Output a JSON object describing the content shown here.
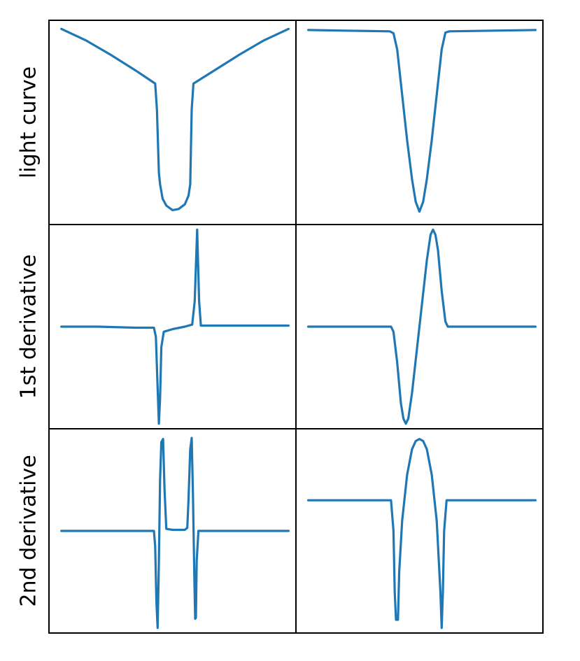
{
  "colors": {
    "line": "#1f77b4",
    "frame": "#000000",
    "background": "#ffffff"
  },
  "row_labels": [
    "light curve",
    "1st derivative",
    "2nd derivative"
  ],
  "chart_data": [
    {
      "type": "line",
      "row": 0,
      "col": 0,
      "title": "",
      "xlabel": "",
      "ylabel": "light curve",
      "grid": false,
      "ticks": false,
      "xlim": [
        0,
        100
      ],
      "ylim": [
        0.66,
        1.015
      ],
      "series": [
        {
          "values": [
            [
              5,
              1.0
            ],
            [
              15,
              0.98
            ],
            [
              25,
              0.955
            ],
            [
              35,
              0.928
            ],
            [
              43,
              0.905
            ],
            [
              43.7,
              0.86
            ],
            [
              44.5,
              0.75
            ],
            [
              45,
              0.73
            ],
            [
              46,
              0.705
            ],
            [
              47.5,
              0.693
            ],
            [
              50,
              0.685
            ],
            [
              52.5,
              0.687
            ],
            [
              55,
              0.695
            ],
            [
              56.5,
              0.71
            ],
            [
              57.2,
              0.73
            ],
            [
              57.8,
              0.86
            ],
            [
              58.5,
              0.905
            ],
            [
              67,
              0.928
            ],
            [
              77,
              0.955
            ],
            [
              87,
              0.98
            ],
            [
              97,
              1.0
            ]
          ]
        }
      ]
    },
    {
      "type": "line",
      "row": 0,
      "col": 1,
      "title": "",
      "xlabel": "",
      "ylabel": "",
      "grid": false,
      "ticks": false,
      "xlim": [
        0,
        100
      ],
      "ylim": [
        0.7,
        1.015
      ],
      "series": [
        {
          "values": [
            [
              5,
              1.0
            ],
            [
              20,
              0.999
            ],
            [
              38,
              0.998
            ],
            [
              39.5,
              0.995
            ],
            [
              41,
              0.97
            ],
            [
              43,
              0.9
            ],
            [
              45,
              0.83
            ],
            [
              47,
              0.77
            ],
            [
              48.5,
              0.735
            ],
            [
              50,
              0.72
            ],
            [
              51.5,
              0.735
            ],
            [
              53,
              0.77
            ],
            [
              55,
              0.83
            ],
            [
              57,
              0.9
            ],
            [
              59,
              0.97
            ],
            [
              60.5,
              0.996
            ],
            [
              62,
              0.998
            ],
            [
              80,
              0.999
            ],
            [
              97,
              1.0
            ]
          ]
        }
      ]
    },
    {
      "type": "line",
      "row": 1,
      "col": 0,
      "title": "",
      "xlabel": "",
      "ylabel": "1st derivative",
      "grid": false,
      "ticks": false,
      "xlim": [
        0,
        100
      ],
      "ylim": [
        -1.0,
        1.0
      ],
      "series": [
        {
          "values": [
            [
              5,
              0.0
            ],
            [
              20,
              0.0
            ],
            [
              35,
              -0.01
            ],
            [
              42.5,
              -0.01
            ],
            [
              43.3,
              -0.1
            ],
            [
              44,
              -0.6
            ],
            [
              44.5,
              -0.95
            ],
            [
              45,
              -0.7
            ],
            [
              45.5,
              -0.2
            ],
            [
              46.5,
              -0.05
            ],
            [
              50,
              -0.025
            ],
            [
              55,
              -0.0
            ],
            [
              58,
              0.02
            ],
            [
              59,
              0.25
            ],
            [
              60,
              0.95
            ],
            [
              60.8,
              0.25
            ],
            [
              61.5,
              0.01
            ],
            [
              70,
              0.01
            ],
            [
              97,
              0.01
            ]
          ]
        }
      ]
    },
    {
      "type": "line",
      "row": 1,
      "col": 1,
      "title": "",
      "xlabel": "",
      "ylabel": "",
      "grid": false,
      "ticks": false,
      "xlim": [
        0,
        100
      ],
      "ylim": [
        -1.0,
        1.0
      ],
      "series": [
        {
          "values": [
            [
              5,
              0.0
            ],
            [
              20,
              0.0
            ],
            [
              38.5,
              0.0
            ],
            [
              39.5,
              -0.05
            ],
            [
              41,
              -0.35
            ],
            [
              42.5,
              -0.75
            ],
            [
              43.5,
              -0.9
            ],
            [
              44.5,
              -0.95
            ],
            [
              45.5,
              -0.9
            ],
            [
              47,
              -0.65
            ],
            [
              50,
              0.0
            ],
            [
              53,
              0.65
            ],
            [
              54.5,
              0.9
            ],
            [
              55.5,
              0.95
            ],
            [
              56.5,
              0.9
            ],
            [
              57.5,
              0.75
            ],
            [
              59,
              0.35
            ],
            [
              60.5,
              0.05
            ],
            [
              61.5,
              0.0
            ],
            [
              80,
              0.0
            ],
            [
              97,
              0.0
            ]
          ]
        }
      ]
    },
    {
      "type": "line",
      "row": 2,
      "col": 0,
      "title": "",
      "xlabel": "",
      "ylabel": "2nd derivative",
      "grid": false,
      "ticks": false,
      "xlim": [
        0,
        100
      ],
      "ylim": [
        -1.0,
        1.0
      ],
      "series": [
        {
          "values": [
            [
              5,
              0.0
            ],
            [
              20,
              0.0
            ],
            [
              35,
              0.0
            ],
            [
              42.5,
              0.0
            ],
            [
              43,
              -0.15
            ],
            [
              43.5,
              -0.7
            ],
            [
              44,
              -0.95
            ],
            [
              44.5,
              -0.3
            ],
            [
              45,
              0.5
            ],
            [
              45.5,
              0.87
            ],
            [
              46.2,
              0.9
            ],
            [
              46.8,
              0.4
            ],
            [
              47.5,
              0.02
            ],
            [
              50,
              0.01
            ],
            [
              55,
              0.01
            ],
            [
              56,
              0.03
            ],
            [
              56.5,
              0.3
            ],
            [
              57.2,
              0.8
            ],
            [
              57.8,
              0.91
            ],
            [
              58.3,
              0.35
            ],
            [
              58.9,
              -0.5
            ],
            [
              59.2,
              -0.86
            ],
            [
              59.5,
              -0.85
            ],
            [
              59.8,
              -0.3
            ],
            [
              60.5,
              0.0
            ],
            [
              70,
              0.0
            ],
            [
              97,
              0.0
            ]
          ]
        }
      ]
    },
    {
      "type": "line",
      "row": 2,
      "col": 1,
      "title": "",
      "xlabel": "",
      "ylabel": "",
      "grid": false,
      "ticks": false,
      "xlim": [
        0,
        100
      ],
      "ylim": [
        -1.0,
        1.0
      ],
      "series": [
        {
          "values": [
            [
              5,
              0.3
            ],
            [
              20,
              0.3
            ],
            [
              38.5,
              0.3
            ],
            [
              39.5,
              0.0
            ],
            [
              40,
              -0.6
            ],
            [
              40.5,
              -0.87
            ],
            [
              41.3,
              -0.87
            ],
            [
              41.8,
              -0.4
            ],
            [
              43,
              0.1
            ],
            [
              45,
              0.55
            ],
            [
              47,
              0.8
            ],
            [
              48.5,
              0.88
            ],
            [
              50,
              0.9
            ],
            [
              51.5,
              0.88
            ],
            [
              53,
              0.8
            ],
            [
              55,
              0.55
            ],
            [
              57,
              0.1
            ],
            [
              58.5,
              -0.6
            ],
            [
              59,
              -0.95
            ],
            [
              59.5,
              -0.6
            ],
            [
              60,
              0.0
            ],
            [
              61,
              0.3
            ],
            [
              80,
              0.3
            ],
            [
              97,
              0.3
            ]
          ]
        }
      ]
    }
  ]
}
